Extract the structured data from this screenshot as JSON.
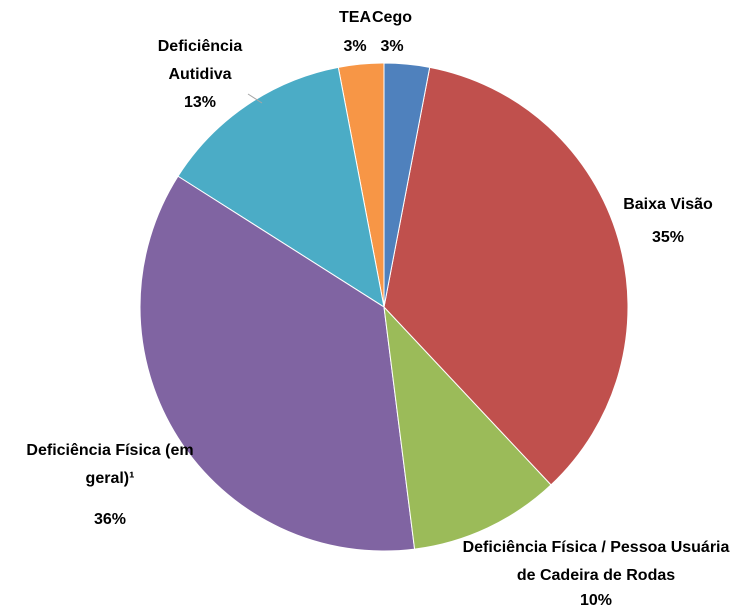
{
  "chart_data": {
    "type": "pie",
    "categories": [
      "Cego",
      "Baixa Visão",
      "Deficiência Física / Pessoa Usuária de Cadeira de Rodas",
      "Deficiência Física (em geral)¹",
      "Deficiência Autidiva",
      "TEA"
    ],
    "values": [
      3,
      35,
      10,
      36,
      13,
      3
    ],
    "value_labels": [
      "3%",
      "35%",
      "10%",
      "36%",
      "13%",
      "3%"
    ],
    "colors": [
      "#4f81bd",
      "#c0504d",
      "#9bbb59",
      "#8064a2",
      "#4bacc6",
      "#f79646"
    ]
  }
}
